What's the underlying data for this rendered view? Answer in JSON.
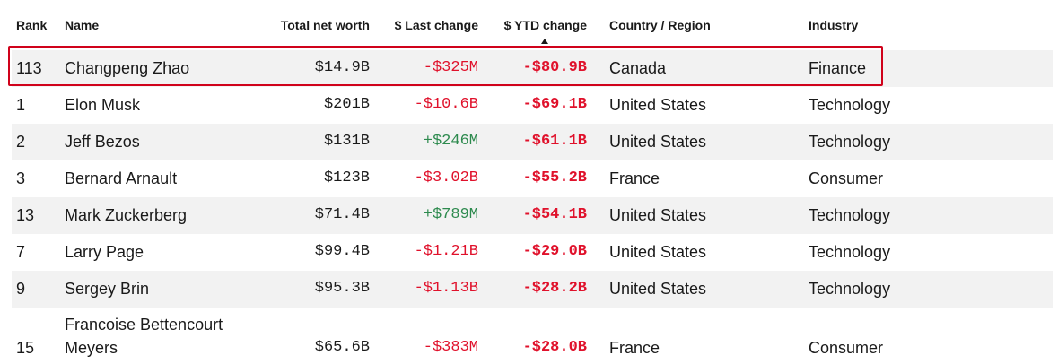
{
  "headers": {
    "rank": "Rank",
    "name": "Name",
    "net_worth": "Total net worth",
    "last_change": "$ Last change",
    "ytd_change": "$ YTD change",
    "country": "Country / Region",
    "industry": "Industry"
  },
  "sort": {
    "column": "ytd_change",
    "indicator": "caret-up-icon"
  },
  "highlighted_row": 0,
  "colors": {
    "negative": "#e0112b",
    "positive": "#2d8a4e",
    "highlight_border": "#d0021b",
    "alt_row": "#f2f2f2"
  },
  "rows": [
    {
      "rank": "113",
      "name": "Changpeng Zhao",
      "net_worth": "$14.9B",
      "last_change": "-$325M",
      "ytd_change": "-$80.9B",
      "country": "Canada",
      "industry": "Finance"
    },
    {
      "rank": "1",
      "name": "Elon Musk",
      "net_worth": "$201B",
      "last_change": "-$10.6B",
      "ytd_change": "-$69.1B",
      "country": "United States",
      "industry": "Technology"
    },
    {
      "rank": "2",
      "name": "Jeff Bezos",
      "net_worth": "$131B",
      "last_change": "+$246M",
      "ytd_change": "-$61.1B",
      "country": "United States",
      "industry": "Technology"
    },
    {
      "rank": "3",
      "name": "Bernard Arnault",
      "net_worth": "$123B",
      "last_change": "-$3.02B",
      "ytd_change": "-$55.2B",
      "country": "France",
      "industry": "Consumer"
    },
    {
      "rank": "13",
      "name": "Mark Zuckerberg",
      "net_worth": "$71.4B",
      "last_change": "+$789M",
      "ytd_change": "-$54.1B",
      "country": "United States",
      "industry": "Technology"
    },
    {
      "rank": "7",
      "name": "Larry Page",
      "net_worth": "$99.4B",
      "last_change": "-$1.21B",
      "ytd_change": "-$29.0B",
      "country": "United States",
      "industry": "Technology"
    },
    {
      "rank": "9",
      "name": "Sergey Brin",
      "net_worth": "$95.3B",
      "last_change": "-$1.13B",
      "ytd_change": "-$28.2B",
      "country": "United States",
      "industry": "Technology"
    },
    {
      "rank": "15",
      "name_line1": "Francoise Bettencourt",
      "name_line2": "Meyers",
      "net_worth": "$65.6B",
      "last_change": "-$383M",
      "ytd_change": "-$28.0B",
      "country": "France",
      "industry": "Consumer"
    }
  ]
}
